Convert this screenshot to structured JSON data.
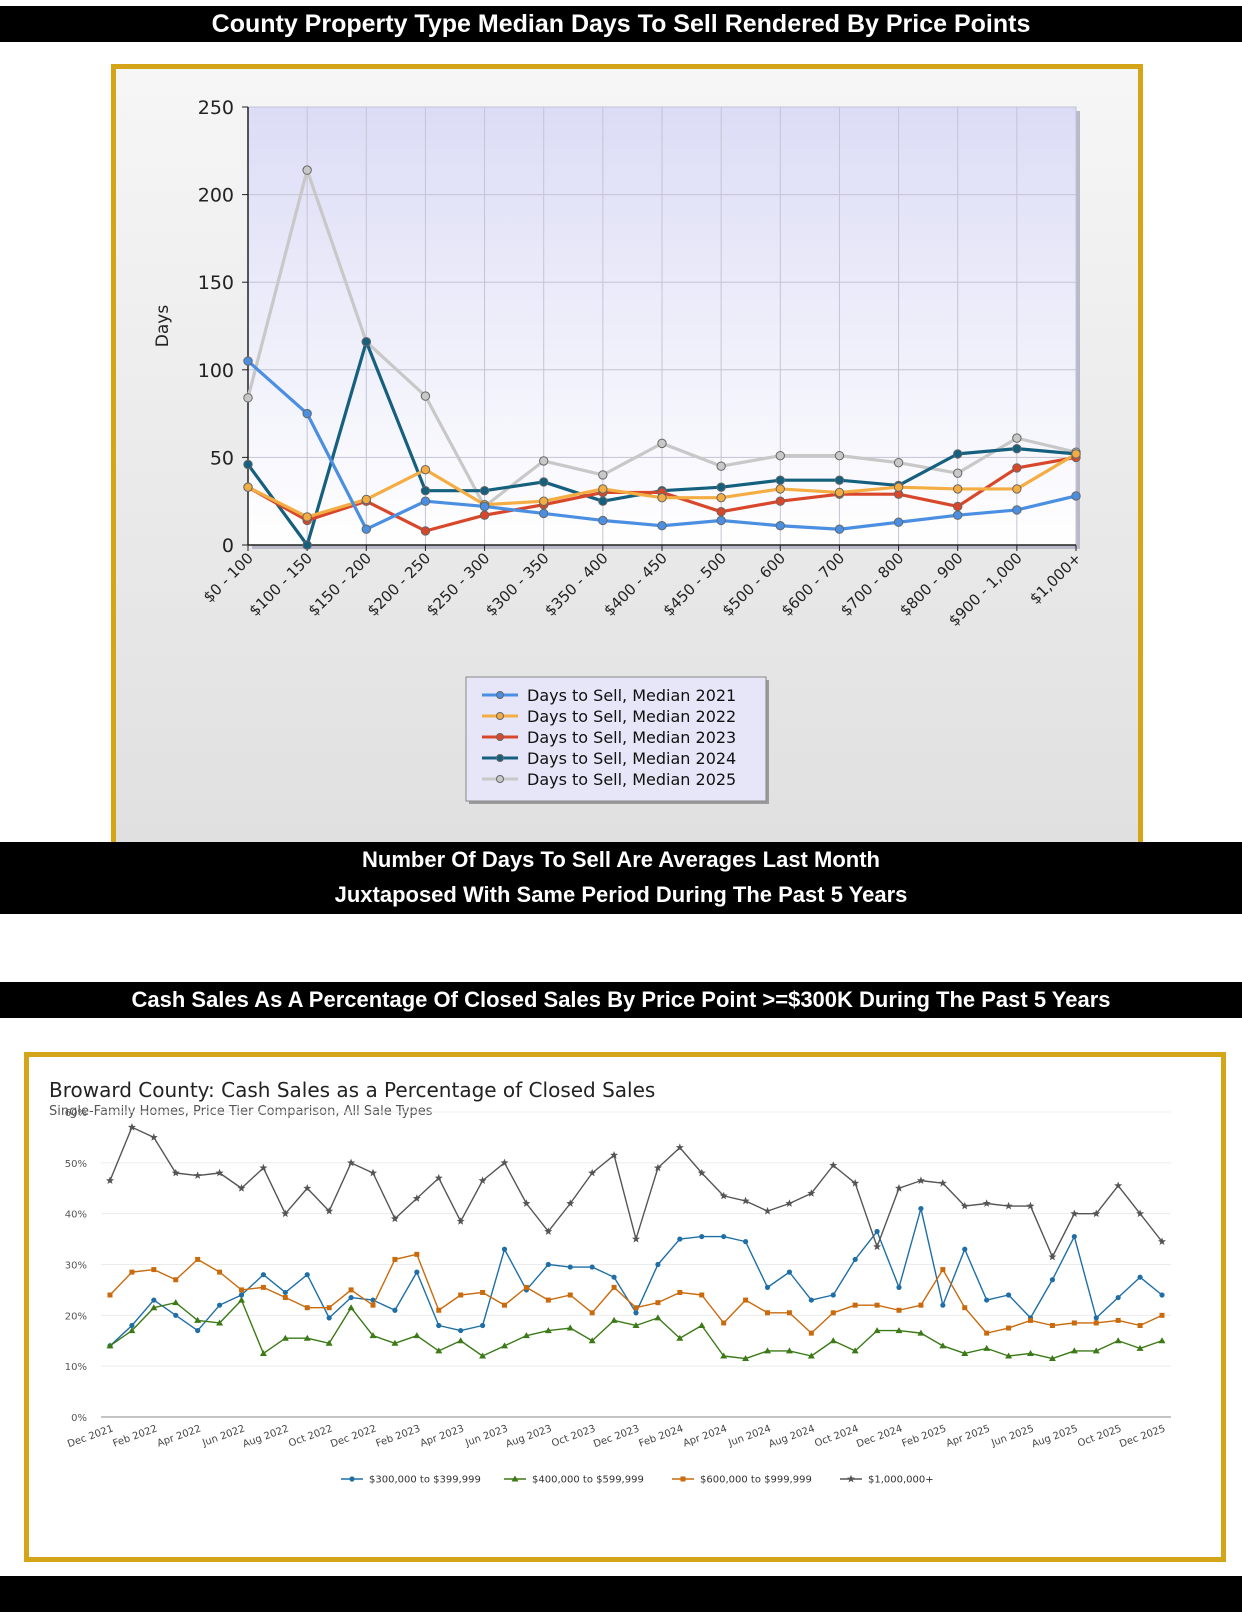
{
  "banners": {
    "top": "County Property Type Median Days To Sell Rendered By Price Points",
    "middle_line1": "Number Of Days To Sell Are Averages Last Month",
    "middle_line2": "Juxtaposed With Same Period During The Past 5 Years",
    "second": "Cash Sales As A Percentage Of Closed Sales By Price Point  >=$300K During The Past 5 Years"
  },
  "chart_data": [
    {
      "type": "line",
      "title": "",
      "xlabel": "",
      "ylabel": "Days",
      "ylim": [
        0,
        250
      ],
      "yticks": [
        0,
        50,
        100,
        150,
        200,
        250
      ],
      "grid": true,
      "legend": "bottom-center",
      "categories": [
        "$0 - 100",
        "$100 - 150",
        "$150 - 200",
        "$200 - 250",
        "$250 - 300",
        "$300 - 350",
        "$350 - 400",
        "$400 - 450",
        "$450 - 500",
        "$500 - 600",
        "$600 - 700",
        "$700 - 800",
        "$800 - 900",
        "$900 - 1,000",
        "$1,000+"
      ],
      "series": [
        {
          "name": "Days to Sell, Median 2021",
          "color": "#4a8fe2",
          "values": [
            105,
            75,
            9,
            25,
            22,
            18,
            14,
            11,
            14,
            11,
            9,
            13,
            17,
            20,
            28
          ]
        },
        {
          "name": "Days to Sell, Median 2022",
          "color": "#f4ad42",
          "values": [
            33,
            16,
            26,
            43,
            23,
            25,
            32,
            27,
            27,
            32,
            30,
            33,
            32,
            32,
            52
          ]
        },
        {
          "name": "Days to Sell, Median 2023",
          "color": "#d9472b",
          "values": [
            33,
            14,
            25,
            8,
            17,
            23,
            30,
            30,
            19,
            25,
            29,
            29,
            22,
            44,
            50
          ]
        },
        {
          "name": "Days to Sell, Median 2024",
          "color": "#15607e",
          "values": [
            46,
            0,
            116,
            31,
            31,
            36,
            25,
            31,
            33,
            37,
            37,
            34,
            52,
            55,
            52
          ]
        },
        {
          "name": "Days to Sell, Median 2025",
          "color": "#c8c8c8",
          "values": [
            84,
            214,
            116,
            85,
            22,
            48,
            40,
            58,
            45,
            51,
            51,
            47,
            41,
            61,
            53
          ]
        }
      ]
    },
    {
      "type": "line",
      "title": "Broward County: Cash Sales as a Percentage of Closed Sales",
      "subtitle": "Single-Family Homes, Price Tier Comparison, All Sale Types",
      "xlabel": "",
      "ylabel": "",
      "ylim": [
        0,
        60
      ],
      "yticks": [
        "0%",
        "10%",
        "20%",
        "30%",
        "40%",
        "50%",
        "60%"
      ],
      "grid": true,
      "legend": "bottom-center",
      "x_tick_labels": [
        "Dec 2021",
        "Feb 2022",
        "Apr 2022",
        "Jun 2022",
        "Aug 2022",
        "Oct 2022",
        "Dec 2022",
        "Feb 2023",
        "Apr 2023",
        "Jun 2023",
        "Aug 2023",
        "Oct 2023",
        "Dec 2023",
        "Feb 2024",
        "Apr 2024",
        "Jun 2024",
        "Aug 2024",
        "Oct 2024",
        "Dec 2024",
        "Feb 2025",
        "Apr 2025",
        "Jun 2025",
        "Aug 2025",
        "Oct 2025",
        "Dec 2025"
      ],
      "series": [
        {
          "name": "$300,000 to $399,999",
          "color": "#1f6fa6",
          "marker": "circle",
          "values": [
            14,
            18,
            23,
            20,
            17,
            22,
            24,
            28,
            24.5,
            28,
            19.5,
            23.5,
            23,
            21,
            28.5,
            18,
            17,
            18,
            33,
            25,
            30,
            29.5,
            29.5,
            27.5,
            20.5,
            30,
            35,
            35.5,
            35.5,
            34.5,
            25.5,
            28.5,
            23,
            24,
            31,
            36.5,
            25.5,
            41,
            22,
            33,
            23,
            24,
            19.5,
            27,
            35.5,
            19.5,
            23.5,
            27.5,
            24
          ]
        },
        {
          "name": "$400,000 to $599,999",
          "color": "#3b7a17",
          "marker": "triangle",
          "values": [
            14,
            17,
            21.5,
            22.5,
            19,
            18.5,
            23,
            12.5,
            15.5,
            15.5,
            14.5,
            21.5,
            16,
            14.5,
            16,
            13,
            15,
            12,
            14,
            16,
            17,
            17.5,
            15,
            19,
            18,
            19.5,
            15.5,
            18,
            12,
            11.5,
            13,
            13,
            12,
            15,
            13,
            17,
            17,
            16.5,
            14,
            12.5,
            13.5,
            12,
            12.5,
            11.5,
            13,
            13,
            15,
            13.5,
            15
          ]
        },
        {
          "name": "$600,000 to $999,999",
          "color": "#c96a0c",
          "marker": "square",
          "values": [
            24,
            28.5,
            29,
            27,
            31,
            28.5,
            25,
            25.5,
            23.5,
            21.5,
            21.5,
            25,
            22,
            31,
            32,
            21,
            24,
            24.5,
            22,
            25.5,
            23,
            24,
            20.5,
            25.5,
            21.5,
            22.5,
            24.5,
            24,
            18.5,
            23,
            20.5,
            20.5,
            16.5,
            20.5,
            22,
            22,
            21,
            22,
            29,
            21.5,
            16.5,
            17.5,
            19,
            18,
            18.5,
            18.5,
            19,
            18,
            20
          ]
        },
        {
          "name": "$1,000,000+",
          "color": "#555555",
          "marker": "star",
          "values": [
            46.5,
            57,
            55,
            48,
            47.5,
            48,
            45,
            49,
            40,
            45,
            40.5,
            50,
            48,
            39,
            43,
            47,
            38.5,
            46.5,
            50,
            42,
            36.5,
            42,
            48,
            51.5,
            35,
            49,
            53,
            48,
            43.5,
            42.5,
            40.5,
            42,
            44,
            49.5,
            46,
            33.5,
            45,
            46.5,
            46,
            41.5,
            42,
            41.5,
            41.5,
            31.5,
            40,
            40,
            45.5,
            40,
            34.5
          ]
        }
      ]
    }
  ]
}
